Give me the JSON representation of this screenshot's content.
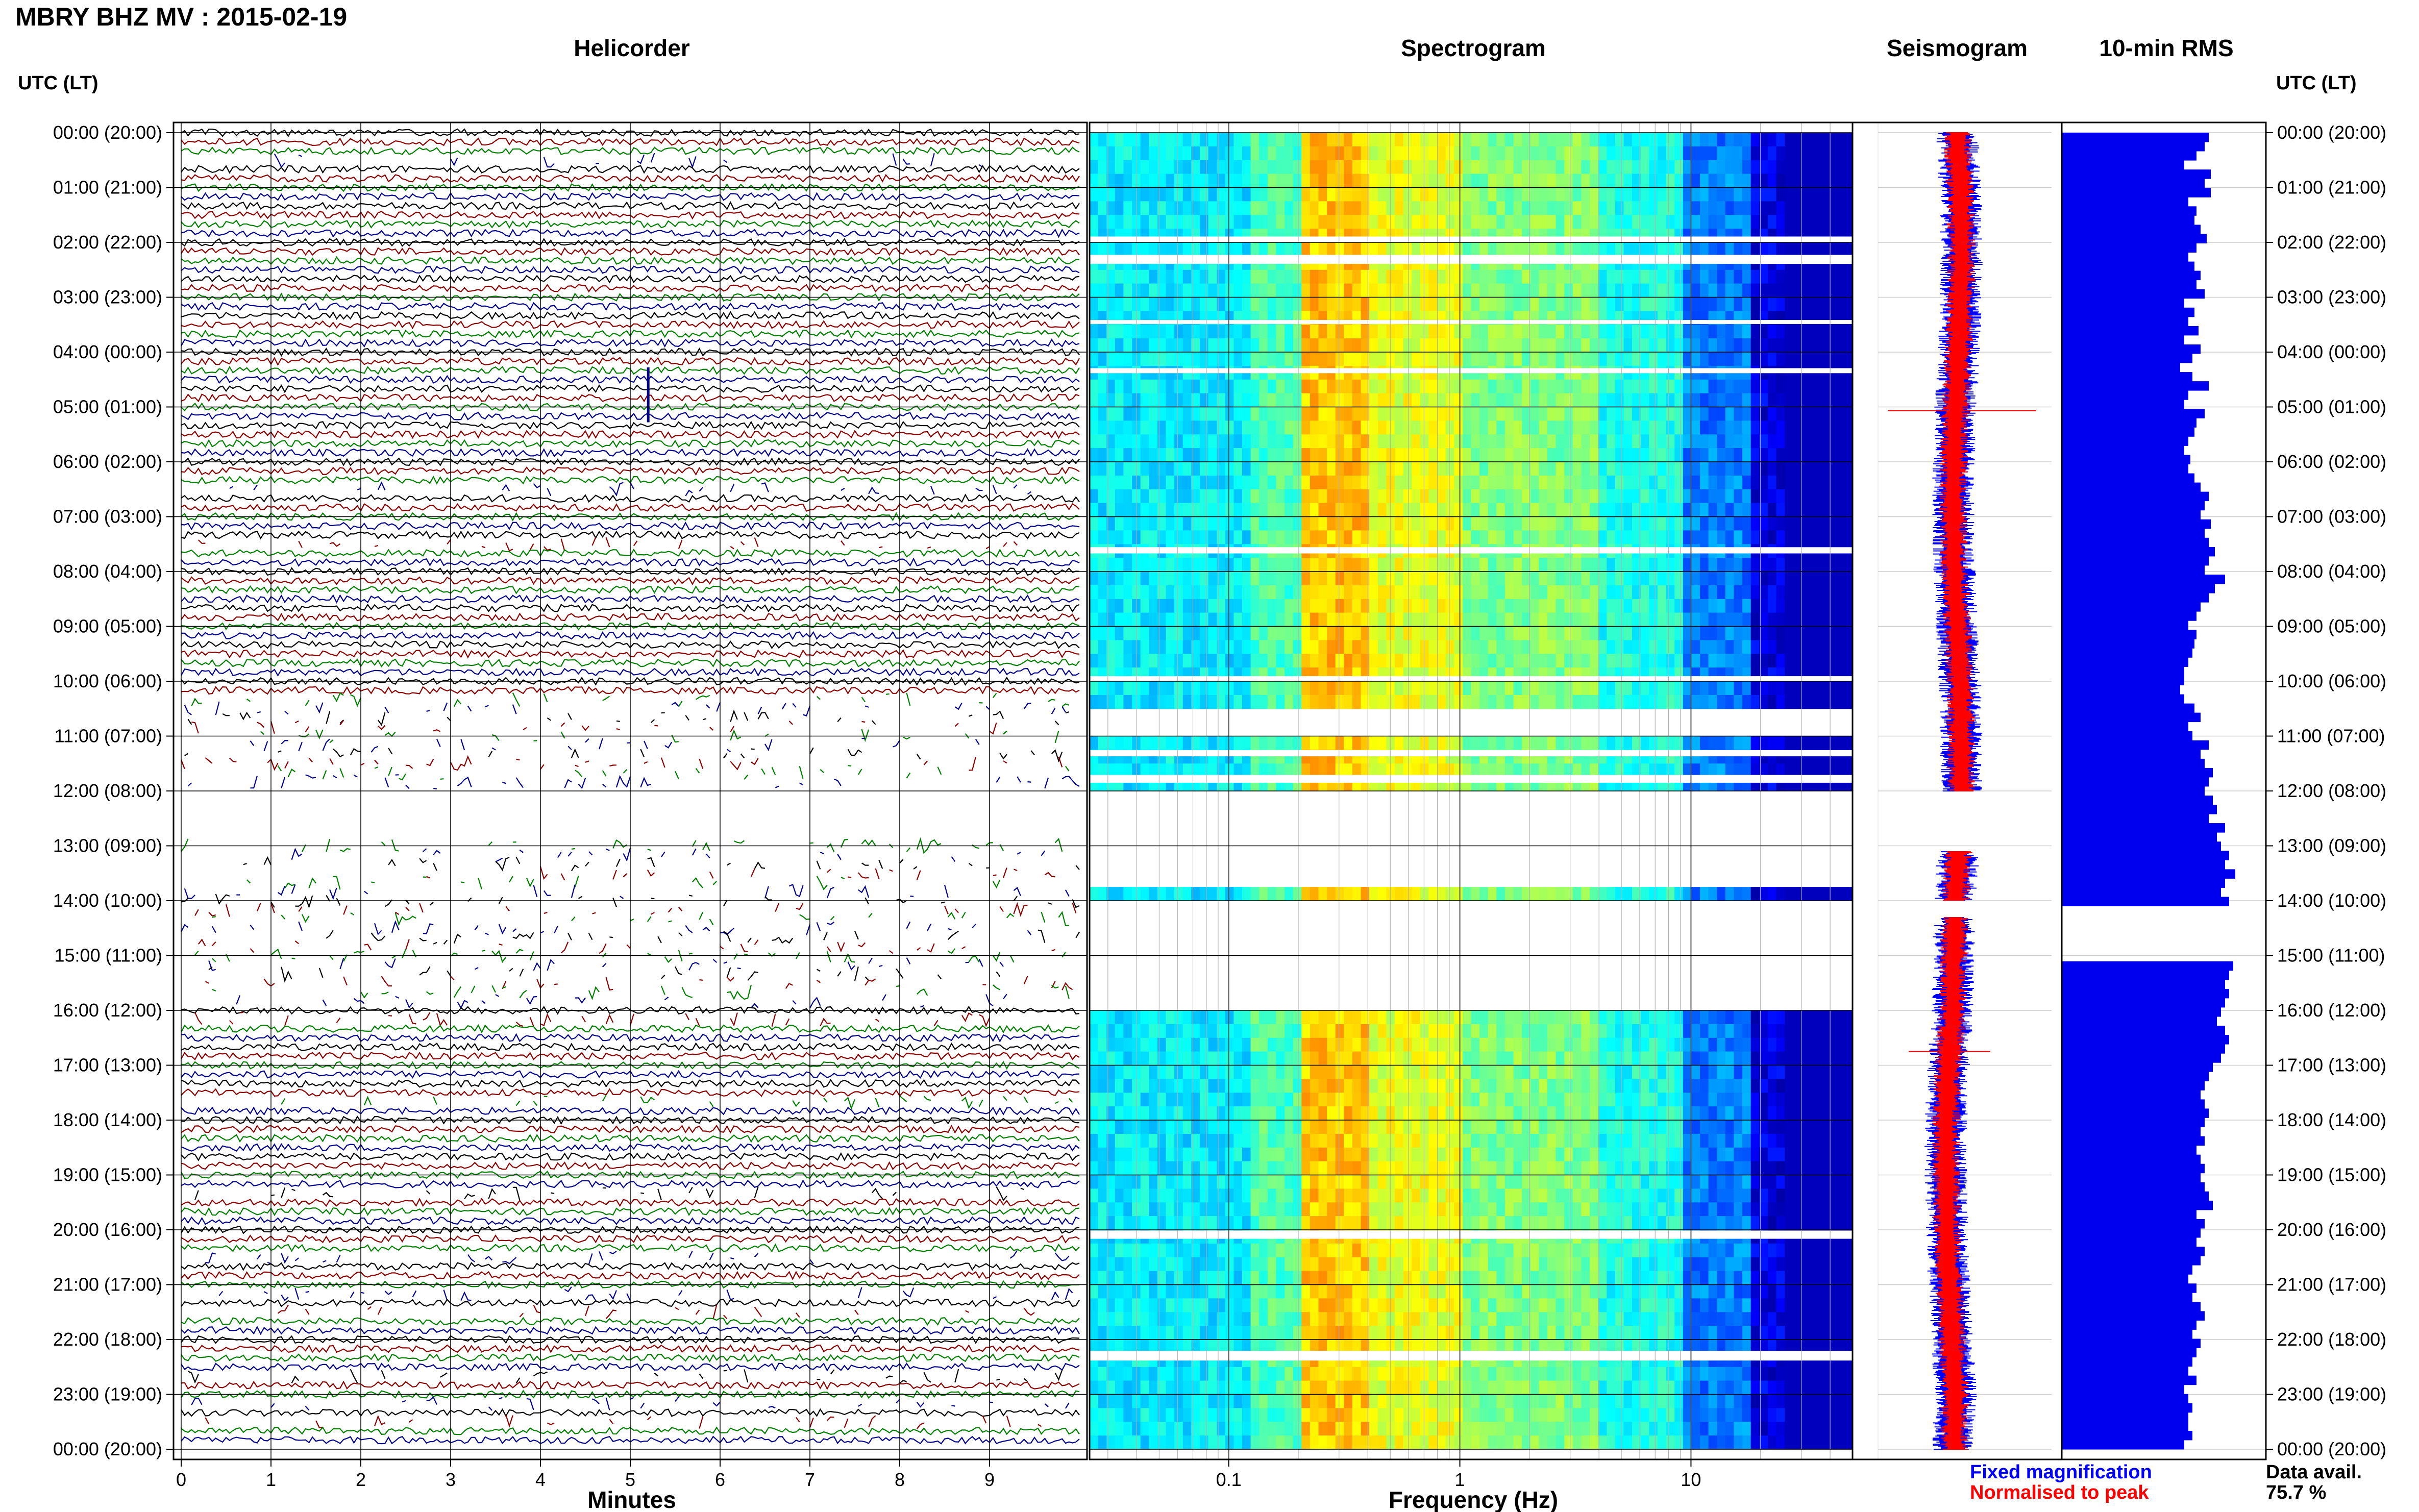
{
  "title": "MBRY BHZ MV : 2015-02-19",
  "colors": {
    "trace_colors": [
      "#000000",
      "#8b0000",
      "#008000",
      "#00008b"
    ],
    "fixed": "#0000ff",
    "normalised": "#ff0000",
    "rms_bar": "#0000ee",
    "grid": "#b0b0b0"
  },
  "left_axis_label": "UTC (LT)",
  "right_axis_label": "UTC (LT)",
  "time_labels": [
    "00:00 (20:00)",
    "01:00 (21:00)",
    "02:00 (22:00)",
    "03:00 (23:00)",
    "04:00 (00:00)",
    "05:00 (01:00)",
    "06:00 (02:00)",
    "07:00 (03:00)",
    "08:00 (04:00)",
    "09:00 (05:00)",
    "10:00 (06:00)",
    "11:00 (07:00)",
    "12:00 (08:00)",
    "13:00 (09:00)",
    "14:00 (10:00)",
    "15:00 (11:00)",
    "16:00 (12:00)",
    "17:00 (13:00)",
    "18:00 (14:00)",
    "19:00 (15:00)",
    "20:00 (16:00)",
    "21:00 (17:00)",
    "22:00 (18:00)",
    "23:00 (19:00)",
    "00:00 (20:00)"
  ],
  "legend": {
    "fixed_label": "Fixed magnification",
    "normalised_label": "Normalised to peak",
    "avail_label": "Data avail.",
    "avail_value": "75.7 %"
  },
  "chart_data": [
    {
      "type": "line",
      "title": "Helicorder",
      "xlabel": "Minutes",
      "ylabel": "UTC (LT)",
      "x_ticks": [
        "0",
        "1",
        "2",
        "3",
        "4",
        "5",
        "6",
        "7",
        "8",
        "9"
      ],
      "xlim": [
        0,
        10
      ],
      "ylim": [
        "00:00",
        "24:00"
      ],
      "traces_per_hour": 6,
      "grid": true,
      "note_gap": "12:00-13:00 UTC no data"
    },
    {
      "type": "heatmap",
      "title": "Spectrogram",
      "xlabel": "Frequency (Hz)",
      "x_scale": "log",
      "x_ticks": [
        "0.1",
        "1",
        "10"
      ],
      "xlim": [
        0.025,
        50
      ],
      "ylim": [
        "00:00",
        "24:00"
      ],
      "colormap": "jet",
      "gaps_utc": [
        [
          "10:20",
          "11:00"
        ],
        [
          "12:00",
          "13:40"
        ],
        [
          "14:00",
          "16:00"
        ]
      ]
    },
    {
      "type": "line",
      "title": "Seismogram",
      "series": [
        {
          "name": "Fixed magnification",
          "color": "#0000ff"
        },
        {
          "name": "Normalised to peak",
          "color": "#ff0000"
        }
      ],
      "ylim": [
        "00:00",
        "24:00"
      ]
    },
    {
      "type": "bar",
      "title": "10-min RMS",
      "orientation": "horizontal",
      "ylim": [
        "00:00",
        "24:00"
      ],
      "rms": [
        0.72,
        0.7,
        0.66,
        0.6,
        0.73,
        0.7,
        0.73,
        0.62,
        0.66,
        0.65,
        0.68,
        0.71,
        0.66,
        0.62,
        0.65,
        0.68,
        0.66,
        0.7,
        0.6,
        0.65,
        0.62,
        0.67,
        0.6,
        0.68,
        0.64,
        0.58,
        0.64,
        0.72,
        0.62,
        0.6,
        0.7,
        0.66,
        0.65,
        0.62,
        0.6,
        0.63,
        0.62,
        0.65,
        0.68,
        0.72,
        0.7,
        0.68,
        0.73,
        0.7,
        0.72,
        0.75,
        0.72,
        0.7,
        0.8,
        0.75,
        0.72,
        0.68,
        0.66,
        0.62,
        0.66,
        0.65,
        0.64,
        0.62,
        0.6,
        0.6,
        0.58,
        0.6,
        0.65,
        0.68,
        0.62,
        0.64,
        0.72,
        0.68,
        0.7,
        0.74,
        0.72,
        0.7,
        0.74,
        0.76,
        0.72,
        0.8,
        0.76,
        0.78,
        0.82,
        0.8,
        0.85,
        0.8,
        0.78,
        0.82,
        null,
        null,
        null,
        null,
        null,
        null,
        0.84,
        0.82,
        0.8,
        0.82,
        0.8,
        0.78,
        0.76,
        0.8,
        0.82,
        0.8,
        0.78,
        0.74,
        0.72,
        0.7,
        0.68,
        0.7,
        0.72,
        0.7,
        0.68,
        0.7,
        0.66,
        0.68,
        0.7,
        0.68,
        0.7,
        0.72,
        0.74,
        0.66,
        0.7,
        0.68,
        0.66,
        0.7,
        0.68,
        0.64,
        0.62,
        0.66,
        0.64,
        0.68,
        0.7,
        0.66,
        0.64,
        0.68,
        0.66,
        0.64,
        0.62,
        0.66,
        0.6,
        0.62,
        0.64,
        0.62,
        0.62,
        0.64,
        0.6
      ]
    }
  ]
}
